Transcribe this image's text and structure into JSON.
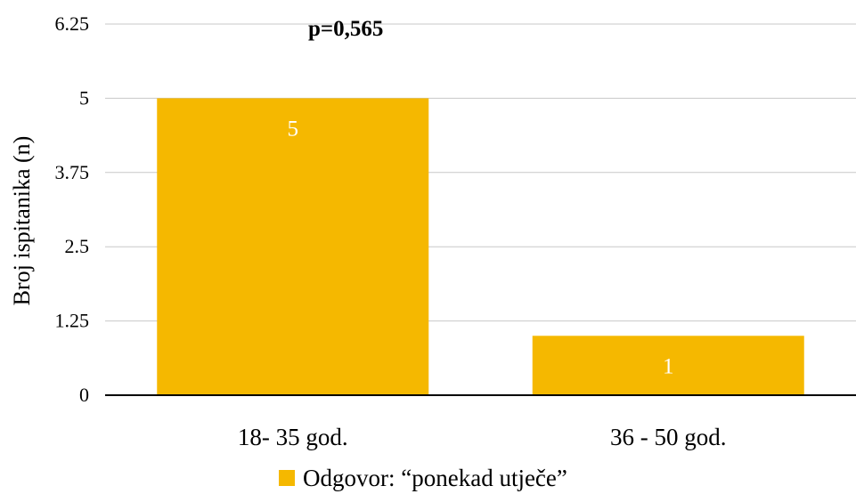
{
  "chart_data": {
    "type": "bar",
    "categories": [
      "18- 35 god.",
      "36 - 50 god."
    ],
    "series": [
      {
        "name": "Odgovor: “ponekad utječe”",
        "values": [
          5,
          1
        ],
        "data_labels": [
          "5",
          "1"
        ],
        "color": "#F5B800"
      }
    ],
    "ylabel": "Broj ispitanika (n)",
    "xlabel": "",
    "ylim": [
      0,
      6.25
    ],
    "yticks": [
      0,
      1.25,
      2.5,
      3.75,
      5,
      6.25
    ],
    "ytick_labels": [
      "0",
      "1.25",
      "2.5",
      "3.75",
      "5",
      "6.25"
    ],
    "annotation": "p=0,565",
    "grid": true,
    "legend_position": "bottom",
    "colors": {
      "bar": "#F5B800",
      "grid": "#C8C8C8",
      "axis": "#000000",
      "data_label": "#FFFFFF"
    }
  }
}
